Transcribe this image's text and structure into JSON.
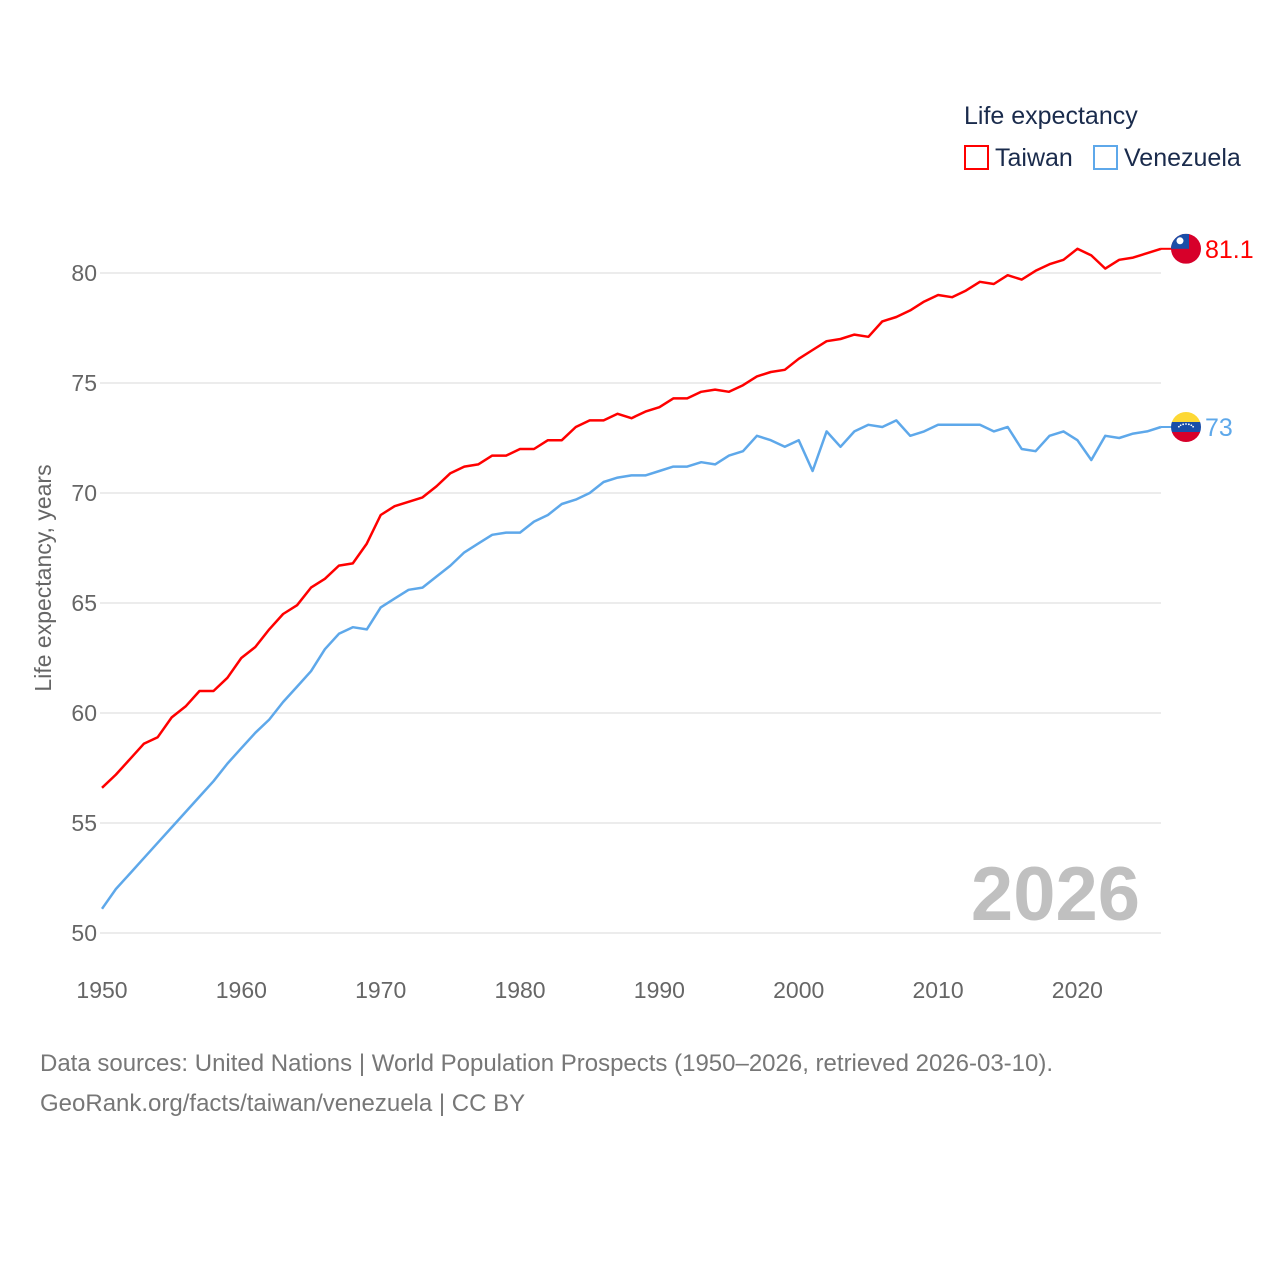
{
  "chart_data": {
    "type": "line",
    "title": "",
    "legend_title": "Life expectancy",
    "legend_position": "top-right",
    "ylabel": "Life expectancy, years",
    "xlabel": "",
    "xlim": [
      1950,
      2026
    ],
    "ylim": [
      50,
      82
    ],
    "grid": true,
    "x_ticks": [
      1950,
      1960,
      1970,
      1980,
      1990,
      2000,
      2010,
      2020
    ],
    "y_ticks": [
      50,
      55,
      60,
      65,
      70,
      75,
      80
    ],
    "year_watermark": "2026",
    "x_start": 1950,
    "series": [
      {
        "name": "Taiwan",
        "color": "#ff0000",
        "end_label": "81.1",
        "flag": "taiwan-flag",
        "values": [
          56.6,
          57.2,
          57.9,
          58.6,
          58.9,
          59.8,
          60.3,
          61.0,
          61.0,
          61.6,
          62.5,
          63.0,
          63.8,
          64.5,
          64.9,
          65.7,
          66.1,
          66.7,
          66.8,
          67.7,
          69.0,
          69.4,
          69.6,
          69.8,
          70.3,
          70.9,
          71.2,
          71.3,
          71.7,
          71.7,
          72.0,
          72.0,
          72.4,
          72.4,
          73.0,
          73.3,
          73.3,
          73.6,
          73.4,
          73.7,
          73.9,
          74.3,
          74.3,
          74.6,
          74.7,
          74.6,
          74.9,
          75.3,
          75.5,
          75.6,
          76.1,
          76.5,
          76.9,
          77.0,
          77.2,
          77.1,
          77.8,
          78.0,
          78.3,
          78.7,
          79.0,
          78.9,
          79.2,
          79.6,
          79.5,
          79.9,
          79.7,
          80.1,
          80.4,
          80.6,
          81.1,
          80.8,
          80.2,
          80.6,
          80.7,
          80.9,
          81.1
        ]
      },
      {
        "name": "Venezuela",
        "color": "#5ea8ea",
        "end_label": "73",
        "flag": "venezuela-flag",
        "values": [
          51.1,
          52.0,
          52.7,
          53.4,
          54.1,
          54.8,
          55.5,
          56.2,
          56.9,
          57.7,
          58.4,
          59.1,
          59.7,
          60.5,
          61.2,
          61.9,
          62.9,
          63.6,
          63.9,
          63.8,
          64.8,
          65.2,
          65.6,
          65.7,
          66.2,
          66.7,
          67.3,
          67.7,
          68.1,
          68.2,
          68.2,
          68.7,
          69.0,
          69.5,
          69.7,
          70.0,
          70.5,
          70.7,
          70.8,
          70.8,
          71.0,
          71.2,
          71.2,
          71.4,
          71.3,
          71.7,
          71.9,
          72.6,
          72.4,
          72.1,
          72.4,
          71.0,
          72.8,
          72.1,
          72.8,
          73.1,
          73.0,
          73.3,
          72.6,
          72.8,
          73.1,
          73.1,
          73.1,
          73.1,
          72.8,
          73.0,
          72.0,
          71.9,
          72.6,
          72.8,
          72.4,
          71.5,
          72.6,
          72.5,
          72.7,
          72.8,
          73.0
        ]
      }
    ]
  },
  "footer": {
    "line1": "Data sources: United Nations | World Population Prospects (1950–2026, retrieved 2026-03-10).",
    "line2": "GeoRank.org/facts/taiwan/venezuela | CC BY"
  }
}
